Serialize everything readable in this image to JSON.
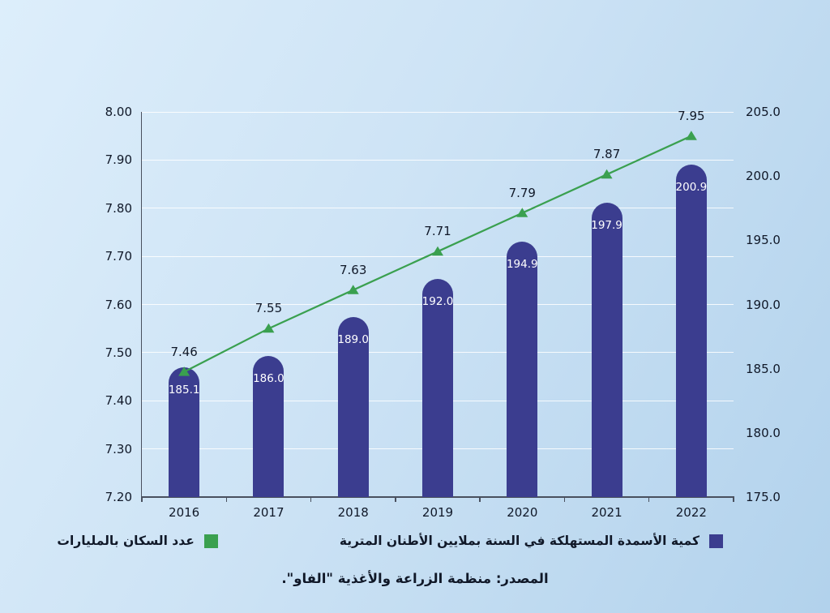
{
  "chart_data": {
    "type": "combo-bar-line",
    "categories": [
      "2016",
      "2017",
      "2018",
      "2019",
      "2020",
      "2021",
      "2022"
    ],
    "series": [
      {
        "name": "كمية الأسمدة المستهلكة في السنة بملايين الأطنان المترية",
        "type": "bar",
        "axis": "right",
        "color": "#3b3d8f",
        "values": [
          185.1,
          186.0,
          189.0,
          192.0,
          194.9,
          197.9,
          200.9
        ],
        "value_labels": [
          "185.1",
          "186.0",
          "189.0",
          "192.0",
          "194.9",
          "197.9",
          "200.9"
        ]
      },
      {
        "name": "عدد السكان بالمليارات",
        "type": "line",
        "axis": "left",
        "color": "#3aa04f",
        "values": [
          7.46,
          7.55,
          7.63,
          7.71,
          7.79,
          7.87,
          7.95
        ],
        "value_labels": [
          "7.46",
          "7.55",
          "7.63",
          "7.71",
          "7.79",
          "7.87",
          "7.95"
        ]
      }
    ],
    "left_axis": {
      "min": 7.2,
      "max": 8.0,
      "tick_values": [
        7.2,
        7.3,
        7.4,
        7.5,
        7.6,
        7.7,
        7.8,
        7.9,
        8.0
      ],
      "tick_labels": [
        "7.20",
        "7.30",
        "7.40",
        "7.50",
        "7.60",
        "7.70",
        "7.80",
        "7.90",
        "8.00"
      ]
    },
    "right_axis": {
      "min": 175.0,
      "max": 205.0,
      "tick_values": [
        175,
        180,
        185,
        190,
        195,
        200,
        205
      ],
      "tick_labels": [
        "175.0",
        "180.0",
        "185.0",
        "190.0",
        "195.0",
        "200.0",
        "205.0"
      ]
    },
    "grid": true,
    "legend_position": "bottom"
  },
  "source": "المصدر: منظمة الزراعة والأغذية \"الفاو\"."
}
